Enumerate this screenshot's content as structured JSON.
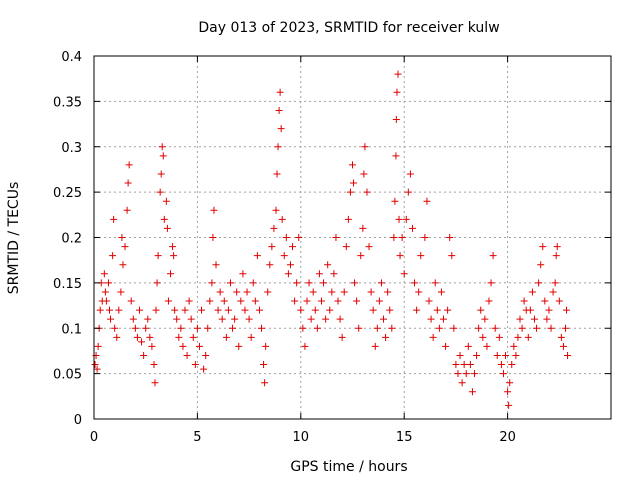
{
  "chart_data": {
    "type": "scatter",
    "title": "Day 013 of 2023, SRMTID for receiver kulw",
    "xlabel": "GPS time / hours",
    "ylabel": "SRMTID / TECUs",
    "xlim": [
      0,
      25
    ],
    "ylim": [
      0,
      0.4
    ],
    "x_ticks": [
      0,
      5,
      10,
      15,
      20
    ],
    "x_tick_labels": [
      "0",
      "5",
      "10",
      "15",
      "20"
    ],
    "y_ticks": [
      0,
      0.05,
      0.1,
      0.15,
      0.2,
      0.25,
      0.3,
      0.35,
      0.4
    ],
    "y_tick_labels": [
      "0",
      "0.05",
      "0.1",
      "0.15",
      "0.2",
      "0.25",
      "0.3",
      "0.35",
      "0.4"
    ],
    "grid": true,
    "marker": "+",
    "color": "#e00000",
    "series": [
      {
        "name": "SRMTID",
        "points": [
          [
            0.05,
            0.06
          ],
          [
            0.1,
            0.07
          ],
          [
            0.15,
            0.055
          ],
          [
            0.2,
            0.08
          ],
          [
            0.25,
            0.1
          ],
          [
            0.3,
            0.12
          ],
          [
            0.35,
            0.15
          ],
          [
            0.4,
            0.13
          ],
          [
            0.5,
            0.16
          ],
          [
            0.55,
            0.14
          ],
          [
            0.6,
            0.13
          ],
          [
            0.7,
            0.15
          ],
          [
            0.75,
            0.12
          ],
          [
            0.8,
            0.11
          ],
          [
            0.9,
            0.18
          ],
          [
            0.95,
            0.22
          ],
          [
            1.0,
            0.1
          ],
          [
            1.1,
            0.09
          ],
          [
            1.2,
            0.12
          ],
          [
            1.3,
            0.14
          ],
          [
            1.35,
            0.2
          ],
          [
            1.4,
            0.17
          ],
          [
            1.5,
            0.19
          ],
          [
            1.6,
            0.23
          ],
          [
            1.65,
            0.26
          ],
          [
            1.7,
            0.28
          ],
          [
            1.8,
            0.13
          ],
          [
            1.9,
            0.11
          ],
          [
            2.0,
            0.1
          ],
          [
            2.1,
            0.09
          ],
          [
            2.2,
            0.12
          ],
          [
            2.3,
            0.085
          ],
          [
            2.4,
            0.07
          ],
          [
            2.5,
            0.1
          ],
          [
            2.6,
            0.11
          ],
          [
            2.7,
            0.09
          ],
          [
            2.8,
            0.08
          ],
          [
            2.9,
            0.06
          ],
          [
            2.95,
            0.04
          ],
          [
            3.0,
            0.12
          ],
          [
            3.05,
            0.15
          ],
          [
            3.1,
            0.18
          ],
          [
            3.2,
            0.25
          ],
          [
            3.25,
            0.27
          ],
          [
            3.3,
            0.3
          ],
          [
            3.35,
            0.29
          ],
          [
            3.4,
            0.22
          ],
          [
            3.5,
            0.24
          ],
          [
            3.55,
            0.21
          ],
          [
            3.6,
            0.13
          ],
          [
            3.7,
            0.16
          ],
          [
            3.8,
            0.19
          ],
          [
            3.85,
            0.18
          ],
          [
            3.9,
            0.12
          ],
          [
            4.0,
            0.11
          ],
          [
            4.1,
            0.09
          ],
          [
            4.2,
            0.1
          ],
          [
            4.3,
            0.08
          ],
          [
            4.4,
            0.12
          ],
          [
            4.5,
            0.07
          ],
          [
            4.6,
            0.13
          ],
          [
            4.7,
            0.11
          ],
          [
            4.8,
            0.09
          ],
          [
            4.9,
            0.06
          ],
          [
            5.0,
            0.1
          ],
          [
            5.1,
            0.08
          ],
          [
            5.2,
            0.12
          ],
          [
            5.3,
            0.055
          ],
          [
            5.4,
            0.07
          ],
          [
            5.5,
            0.1
          ],
          [
            5.6,
            0.13
          ],
          [
            5.7,
            0.15
          ],
          [
            5.75,
            0.2
          ],
          [
            5.8,
            0.23
          ],
          [
            5.9,
            0.17
          ],
          [
            6.0,
            0.12
          ],
          [
            6.1,
            0.14
          ],
          [
            6.2,
            0.11
          ],
          [
            6.3,
            0.13
          ],
          [
            6.4,
            0.09
          ],
          [
            6.5,
            0.12
          ],
          [
            6.6,
            0.15
          ],
          [
            6.7,
            0.1
          ],
          [
            6.8,
            0.11
          ],
          [
            6.9,
            0.14
          ],
          [
            7.0,
            0.08
          ],
          [
            7.1,
            0.13
          ],
          [
            7.2,
            0.16
          ],
          [
            7.3,
            0.12
          ],
          [
            7.4,
            0.14
          ],
          [
            7.5,
            0.11
          ],
          [
            7.6,
            0.09
          ],
          [
            7.7,
            0.15
          ],
          [
            7.8,
            0.13
          ],
          [
            7.9,
            0.18
          ],
          [
            8.0,
            0.12
          ],
          [
            8.1,
            0.1
          ],
          [
            8.2,
            0.06
          ],
          [
            8.25,
            0.04
          ],
          [
            8.3,
            0.08
          ],
          [
            8.4,
            0.14
          ],
          [
            8.5,
            0.17
          ],
          [
            8.6,
            0.19
          ],
          [
            8.7,
            0.21
          ],
          [
            8.8,
            0.23
          ],
          [
            8.85,
            0.27
          ],
          [
            8.9,
            0.3
          ],
          [
            8.95,
            0.34
          ],
          [
            9.0,
            0.36
          ],
          [
            9.05,
            0.32
          ],
          [
            9.1,
            0.22
          ],
          [
            9.2,
            0.18
          ],
          [
            9.3,
            0.2
          ],
          [
            9.4,
            0.16
          ],
          [
            9.5,
            0.17
          ],
          [
            9.6,
            0.19
          ],
          [
            9.7,
            0.13
          ],
          [
            9.8,
            0.15
          ],
          [
            9.9,
            0.2
          ],
          [
            10.0,
            0.12
          ],
          [
            10.1,
            0.1
          ],
          [
            10.2,
            0.08
          ],
          [
            10.3,
            0.13
          ],
          [
            10.4,
            0.15
          ],
          [
            10.5,
            0.11
          ],
          [
            10.6,
            0.14
          ],
          [
            10.7,
            0.12
          ],
          [
            10.8,
            0.1
          ],
          [
            10.9,
            0.16
          ],
          [
            11.0,
            0.13
          ],
          [
            11.1,
            0.15
          ],
          [
            11.2,
            0.11
          ],
          [
            11.3,
            0.17
          ],
          [
            11.4,
            0.12
          ],
          [
            11.5,
            0.14
          ],
          [
            11.6,
            0.16
          ],
          [
            11.7,
            0.2
          ],
          [
            11.8,
            0.13
          ],
          [
            11.9,
            0.11
          ],
          [
            12.0,
            0.09
          ],
          [
            12.1,
            0.14
          ],
          [
            12.2,
            0.19
          ],
          [
            12.3,
            0.22
          ],
          [
            12.4,
            0.25
          ],
          [
            12.5,
            0.28
          ],
          [
            12.55,
            0.26
          ],
          [
            12.6,
            0.15
          ],
          [
            12.7,
            0.13
          ],
          [
            12.8,
            0.1
          ],
          [
            12.9,
            0.18
          ],
          [
            13.0,
            0.21
          ],
          [
            13.05,
            0.27
          ],
          [
            13.1,
            0.3
          ],
          [
            13.2,
            0.25
          ],
          [
            13.3,
            0.19
          ],
          [
            13.4,
            0.14
          ],
          [
            13.5,
            0.12
          ],
          [
            13.6,
            0.08
          ],
          [
            13.7,
            0.1
          ],
          [
            13.8,
            0.13
          ],
          [
            13.9,
            0.15
          ],
          [
            14.0,
            0.11
          ],
          [
            14.1,
            0.09
          ],
          [
            14.2,
            0.14
          ],
          [
            14.3,
            0.12
          ],
          [
            14.4,
            0.1
          ],
          [
            14.5,
            0.2
          ],
          [
            14.55,
            0.24
          ],
          [
            14.6,
            0.29
          ],
          [
            14.62,
            0.33
          ],
          [
            14.65,
            0.36
          ],
          [
            14.7,
            0.38
          ],
          [
            14.75,
            0.22
          ],
          [
            14.8,
            0.18
          ],
          [
            14.9,
            0.2
          ],
          [
            15.0,
            0.16
          ],
          [
            15.1,
            0.22
          ],
          [
            15.2,
            0.25
          ],
          [
            15.3,
            0.27
          ],
          [
            15.4,
            0.21
          ],
          [
            15.5,
            0.15
          ],
          [
            15.6,
            0.12
          ],
          [
            15.7,
            0.14
          ],
          [
            15.8,
            0.18
          ],
          [
            16.0,
            0.2
          ],
          [
            16.1,
            0.24
          ],
          [
            16.2,
            0.13
          ],
          [
            16.3,
            0.11
          ],
          [
            16.4,
            0.09
          ],
          [
            16.5,
            0.15
          ],
          [
            16.6,
            0.12
          ],
          [
            16.7,
            0.1
          ],
          [
            16.8,
            0.14
          ],
          [
            16.9,
            0.11
          ],
          [
            17.0,
            0.08
          ],
          [
            17.1,
            0.12
          ],
          [
            17.2,
            0.2
          ],
          [
            17.3,
            0.18
          ],
          [
            17.4,
            0.1
          ],
          [
            17.5,
            0.06
          ],
          [
            17.6,
            0.05
          ],
          [
            17.7,
            0.07
          ],
          [
            17.8,
            0.04
          ],
          [
            17.9,
            0.06
          ],
          [
            18.0,
            0.05
          ],
          [
            18.1,
            0.08
          ],
          [
            18.2,
            0.06
          ],
          [
            18.3,
            0.03
          ],
          [
            18.4,
            0.05
          ],
          [
            18.5,
            0.07
          ],
          [
            18.6,
            0.1
          ],
          [
            18.7,
            0.12
          ],
          [
            18.8,
            0.09
          ],
          [
            18.9,
            0.11
          ],
          [
            19.0,
            0.08
          ],
          [
            19.1,
            0.13
          ],
          [
            19.2,
            0.15
          ],
          [
            19.3,
            0.18
          ],
          [
            19.4,
            0.1
          ],
          [
            19.5,
            0.07
          ],
          [
            19.6,
            0.09
          ],
          [
            19.7,
            0.06
          ],
          [
            19.8,
            0.05
          ],
          [
            19.9,
            0.07
          ],
          [
            20.0,
            0.03
          ],
          [
            20.05,
            0.015
          ],
          [
            20.1,
            0.04
          ],
          [
            20.2,
            0.06
          ],
          [
            20.3,
            0.08
          ],
          [
            20.4,
            0.07
          ],
          [
            20.5,
            0.09
          ],
          [
            20.6,
            0.11
          ],
          [
            20.7,
            0.1
          ],
          [
            20.8,
            0.13
          ],
          [
            20.9,
            0.12
          ],
          [
            21.0,
            0.09
          ],
          [
            21.1,
            0.12
          ],
          [
            21.2,
            0.14
          ],
          [
            21.3,
            0.11
          ],
          [
            21.4,
            0.1
          ],
          [
            21.5,
            0.15
          ],
          [
            21.6,
            0.17
          ],
          [
            21.7,
            0.19
          ],
          [
            21.8,
            0.13
          ],
          [
            21.9,
            0.11
          ],
          [
            22.0,
            0.12
          ],
          [
            22.1,
            0.1
          ],
          [
            22.2,
            0.14
          ],
          [
            22.3,
            0.15
          ],
          [
            22.35,
            0.18
          ],
          [
            22.4,
            0.19
          ],
          [
            22.5,
            0.13
          ],
          [
            22.6,
            0.09
          ],
          [
            22.7,
            0.08
          ],
          [
            22.8,
            0.1
          ],
          [
            22.85,
            0.12
          ],
          [
            22.9,
            0.07
          ]
        ]
      }
    ]
  }
}
